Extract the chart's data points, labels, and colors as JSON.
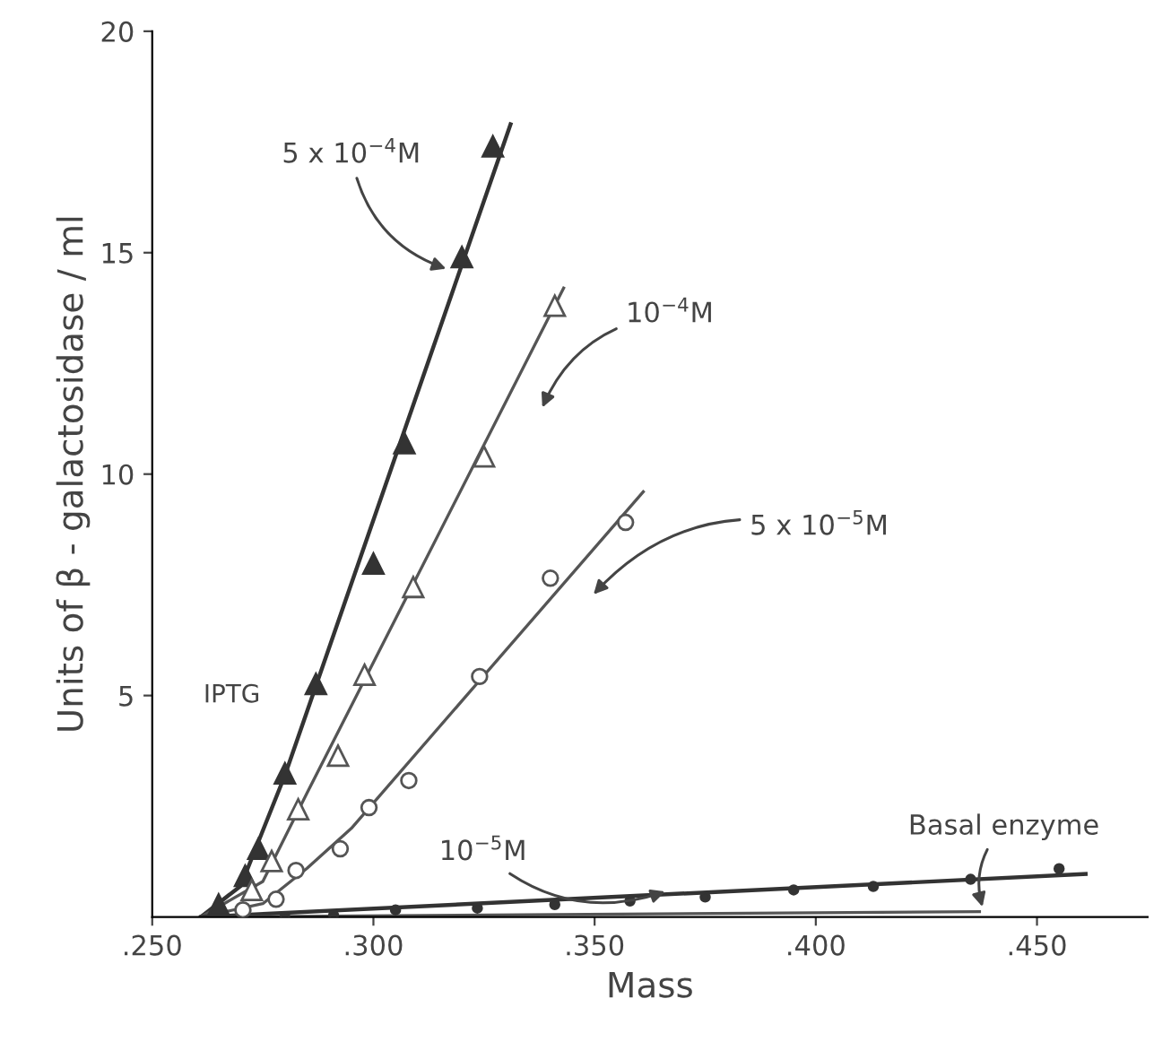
{
  "chart_data": {
    "type": "scatter",
    "xlabel": "Mass",
    "ylabel": "Units of β - galactosidase / ml",
    "xlim": [
      0.25,
      0.475
    ],
    "ylim": [
      0,
      20
    ],
    "xticks": [
      {
        "value": 0.25,
        "label": ".250"
      },
      {
        "value": 0.3,
        "label": ".300"
      },
      {
        "value": 0.35,
        "label": ".350"
      },
      {
        "value": 0.4,
        "label": ".400"
      },
      {
        "value": 0.45,
        "label": ".450"
      }
    ],
    "yticks": [
      5,
      10,
      15,
      20
    ],
    "grid": false,
    "series": [
      {
        "marker": "triangle",
        "color": "#333333",
        "x": [
          0.265,
          0.271,
          0.274,
          0.28,
          0.287,
          0.3,
          0.307,
          0.32,
          0.327
        ],
        "values": [
          0.28,
          0.93,
          1.54,
          3.24,
          5.26,
          7.98,
          10.7,
          14.9,
          17.4
        ]
      },
      {
        "marker": "triangle",
        "color": "#555555",
        "x": [
          0.2725,
          0.277,
          0.283,
          0.292,
          0.298,
          0.309,
          0.325,
          0.341
        ],
        "values": [
          0.61,
          1.26,
          2.43,
          3.64,
          5.47,
          7.45,
          10.4,
          13.8
        ]
      },
      {
        "marker": "circle",
        "color": "#555555",
        "x": [
          0.2705,
          0.278,
          0.2825,
          0.2925,
          0.299,
          0.308,
          0.324,
          0.34,
          0.357
        ],
        "values": [
          0.16,
          0.4,
          1.05,
          1.54,
          2.47,
          3.08,
          5.43,
          7.65,
          8.91
        ]
      },
      {
        "marker": "circle",
        "color": "#333333",
        "x": [
          0.28,
          0.291,
          0.305,
          0.3235,
          0.341,
          0.358,
          0.375,
          0.395,
          0.413,
          0.435,
          0.455
        ],
        "values": [
          0,
          0.04,
          0.16,
          0.2,
          0.28,
          0.36,
          0.45,
          0.61,
          0.69,
          0.85,
          1.09
        ]
      },
      {
        "type": "line",
        "color": "#333333",
        "x": [
          0.261,
          0.27,
          0.28,
          0.331
        ],
        "values": [
          0,
          0.7,
          3.2,
          17.9
        ]
      },
      {
        "type": "line",
        "color": "#555555",
        "x": [
          0.261,
          0.275,
          0.285,
          0.343
        ],
        "values": [
          0,
          0.8,
          2.8,
          14.2
        ]
      },
      {
        "type": "line",
        "color": "#555555",
        "x": [
          0.261,
          0.275,
          0.285,
          0.295,
          0.361
        ],
        "values": [
          0,
          0.3,
          1.1,
          2.0,
          9.6
        ]
      },
      {
        "type": "line",
        "color": "#333333",
        "x": [
          0.261,
          0.461
        ],
        "values": [
          0,
          0.97
        ]
      },
      {
        "type": "line",
        "color": "#555555",
        "x": [
          0.261,
          0.437
        ],
        "values": [
          0,
          0.12
        ]
      }
    ],
    "annotations": [
      "5 x 10$^{−4}$M",
      "10$^{−4}$M",
      "5 x 10$^{−5}$M",
      {
        "text": "10$^{−5}$M",
        "x": 0.367,
        "y": 0.61
      },
      {
        "text": "Basal enzyme",
        "x": 0.438,
        "y": 0.12
      },
      "IPTG"
    ]
  }
}
